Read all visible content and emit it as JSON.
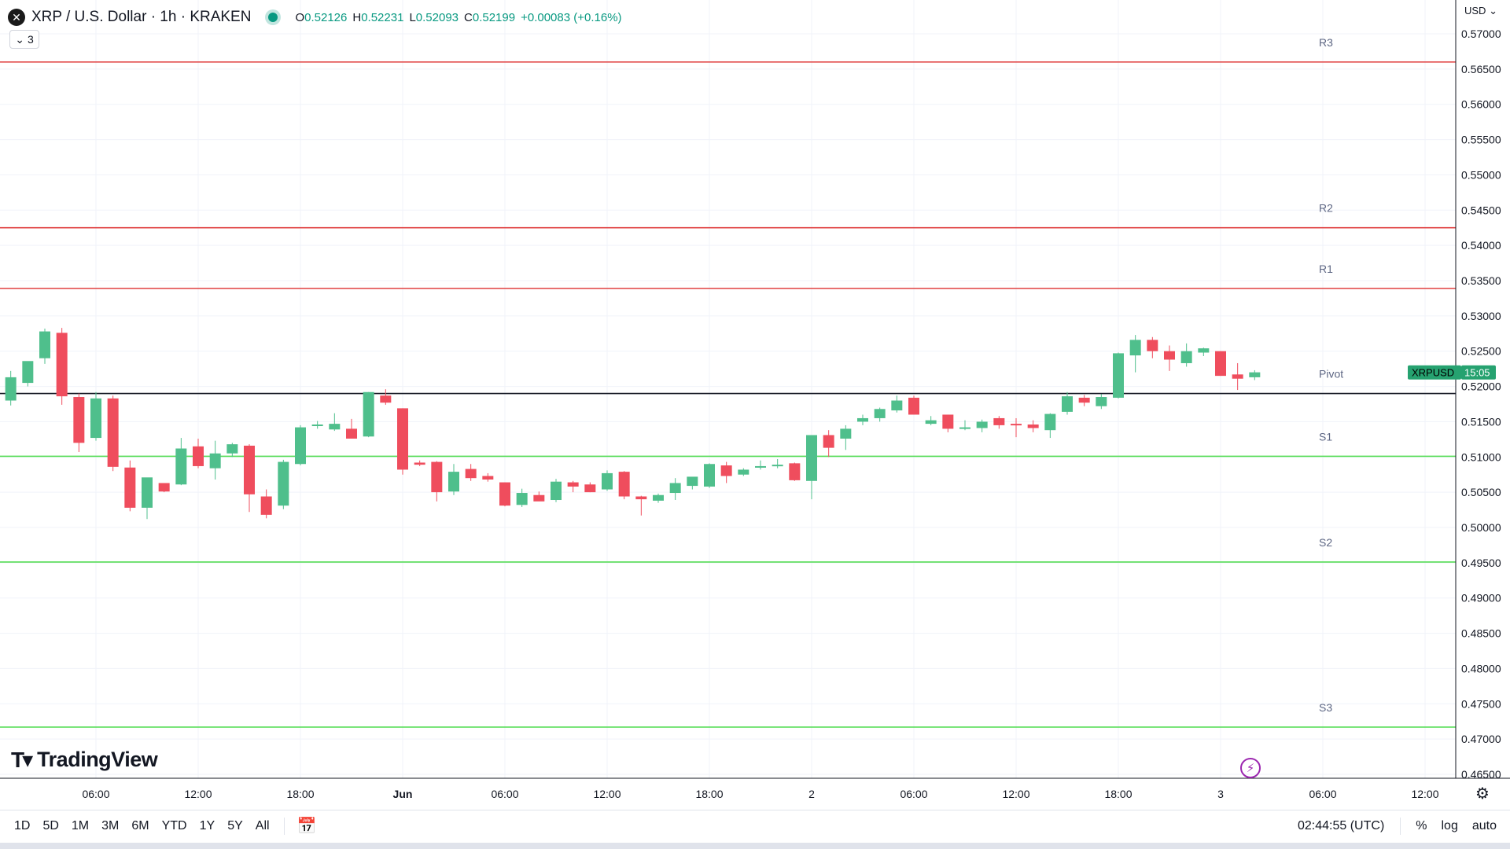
{
  "header": {
    "symbol_icon": "xrp-logo-icon",
    "title": "XRP / U.S. Dollar · 1h · KRAKEN",
    "ohlc": {
      "o_label": "O",
      "o": "0.52126",
      "h_label": "H",
      "h": "0.52231",
      "l_label": "L",
      "l": "0.52093",
      "c_label": "C",
      "c": "0.52199",
      "change": "+0.00083 (+0.16%)"
    },
    "indicators_count": "3",
    "currency": "USD"
  },
  "branding": {
    "logo_text": "TradingView"
  },
  "bottom_bar": {
    "ranges": [
      "1D",
      "5D",
      "1M",
      "3M",
      "6M",
      "YTD",
      "1Y",
      "5Y",
      "All"
    ],
    "clock": "02:44:55 (UTC)",
    "percent_label": "%",
    "log_label": "log",
    "auto_label": "auto"
  },
  "colors": {
    "up": "#4fbf8c",
    "down": "#ef4d5d",
    "resistance": "#e04141",
    "support": "#55dd55",
    "pivot": "#131722",
    "tag": "#26a270"
  },
  "chart_data": {
    "type": "candlestick",
    "yaxis": {
      "min": 0.465,
      "max": 0.57,
      "ticks": [
        "0.57000",
        "0.56500",
        "0.56000",
        "0.55500",
        "0.55000",
        "0.54500",
        "0.54000",
        "0.53500",
        "0.53000",
        "0.52500",
        "0.52000",
        "0.51500",
        "0.51000",
        "0.50500",
        "0.50000",
        "0.49500",
        "0.49000",
        "0.48500",
        "0.48000",
        "0.47500",
        "0.47000",
        "0.46500"
      ]
    },
    "xaxis": {
      "ticks": [
        {
          "label": "06:00",
          "i": 5
        },
        {
          "label": "12:00",
          "i": 11
        },
        {
          "label": "18:00",
          "i": 17
        },
        {
          "label": "Jun",
          "i": 23
        },
        {
          "label": "06:00",
          "i": 29
        },
        {
          "label": "12:00",
          "i": 35
        },
        {
          "label": "18:00",
          "i": 41
        },
        {
          "label": "2",
          "i": 47
        },
        {
          "label": "06:00",
          "i": 53
        },
        {
          "label": "12:00",
          "i": 59
        },
        {
          "label": "18:00",
          "i": 65
        },
        {
          "label": "3",
          "i": 71
        },
        {
          "label": "06:00",
          "i": 77
        },
        {
          "label": "12:00",
          "i": 83
        }
      ]
    },
    "levels": [
      {
        "name": "R3",
        "value": 0.566,
        "kind": "resistance"
      },
      {
        "name": "R2",
        "value": 0.5425,
        "kind": "resistance"
      },
      {
        "name": "R1",
        "value": 0.5339,
        "kind": "resistance"
      },
      {
        "name": "Pivot",
        "value": 0.519,
        "kind": "pivot"
      },
      {
        "name": "S1",
        "value": 0.5101,
        "kind": "support"
      },
      {
        "name": "S2",
        "value": 0.4951,
        "kind": "support"
      },
      {
        "name": "S3",
        "value": 0.4717,
        "kind": "support"
      }
    ],
    "price_tag": {
      "symbol": "XRPUSD",
      "countdown": "15:05",
      "value": 0.52199
    },
    "candles": [
      {
        "o": 0.518,
        "h": 0.5222,
        "l": 0.5173,
        "c": 0.5213
      },
      {
        "o": 0.5205,
        "h": 0.5231,
        "l": 0.52,
        "c": 0.5236
      },
      {
        "o": 0.524,
        "h": 0.5282,
        "l": 0.5232,
        "c": 0.5278
      },
      {
        "o": 0.5276,
        "h": 0.5283,
        "l": 0.5174,
        "c": 0.5186
      },
      {
        "o": 0.5185,
        "h": 0.519,
        "l": 0.5107,
        "c": 0.512
      },
      {
        "o": 0.5127,
        "h": 0.5192,
        "l": 0.5123,
        "c": 0.5183
      },
      {
        "o": 0.5183,
        "h": 0.5187,
        "l": 0.508,
        "c": 0.5086
      },
      {
        "o": 0.5085,
        "h": 0.5095,
        "l": 0.5023,
        "c": 0.5028
      },
      {
        "o": 0.5028,
        "h": 0.507,
        "l": 0.5012,
        "c": 0.5071
      },
      {
        "o": 0.5063,
        "h": 0.5063,
        "l": 0.505,
        "c": 0.5051
      },
      {
        "o": 0.5061,
        "h": 0.5127,
        "l": 0.506,
        "c": 0.5112
      },
      {
        "o": 0.5115,
        "h": 0.5126,
        "l": 0.5084,
        "c": 0.5087
      },
      {
        "o": 0.5084,
        "h": 0.5123,
        "l": 0.5068,
        "c": 0.5105
      },
      {
        "o": 0.5105,
        "h": 0.512,
        "l": 0.51,
        "c": 0.5118
      },
      {
        "o": 0.5116,
        "h": 0.5118,
        "l": 0.5022,
        "c": 0.5047
      },
      {
        "o": 0.5044,
        "h": 0.5054,
        "l": 0.5013,
        "c": 0.5018
      },
      {
        "o": 0.5031,
        "h": 0.5096,
        "l": 0.5026,
        "c": 0.5093
      },
      {
        "o": 0.509,
        "h": 0.5145,
        "l": 0.5088,
        "c": 0.5142
      },
      {
        "o": 0.5144,
        "h": 0.5151,
        "l": 0.514,
        "c": 0.5146
      },
      {
        "o": 0.5139,
        "h": 0.5162,
        "l": 0.5137,
        "c": 0.5147
      },
      {
        "o": 0.514,
        "h": 0.5154,
        "l": 0.513,
        "c": 0.5126
      },
      {
        "o": 0.5129,
        "h": 0.5192,
        "l": 0.5128,
        "c": 0.5192
      },
      {
        "o": 0.5187,
        "h": 0.5196,
        "l": 0.5174,
        "c": 0.5177
      },
      {
        "o": 0.5169,
        "h": 0.5169,
        "l": 0.5075,
        "c": 0.5082
      },
      {
        "o": 0.5092,
        "h": 0.5095,
        "l": 0.5087,
        "c": 0.5089
      },
      {
        "o": 0.5093,
        "h": 0.5094,
        "l": 0.5037,
        "c": 0.505
      },
      {
        "o": 0.5051,
        "h": 0.509,
        "l": 0.5046,
        "c": 0.5079
      },
      {
        "o": 0.5083,
        "h": 0.509,
        "l": 0.5066,
        "c": 0.507
      },
      {
        "o": 0.5073,
        "h": 0.5077,
        "l": 0.5065,
        "c": 0.5068
      },
      {
        "o": 0.5064,
        "h": 0.5064,
        "l": 0.503,
        "c": 0.5031
      },
      {
        "o": 0.5032,
        "h": 0.5055,
        "l": 0.5029,
        "c": 0.5049
      },
      {
        "o": 0.5046,
        "h": 0.5051,
        "l": 0.5038,
        "c": 0.5037
      },
      {
        "o": 0.5039,
        "h": 0.5069,
        "l": 0.5036,
        "c": 0.5065
      },
      {
        "o": 0.5064,
        "h": 0.5066,
        "l": 0.505,
        "c": 0.5058
      },
      {
        "o": 0.5061,
        "h": 0.5064,
        "l": 0.505,
        "c": 0.505
      },
      {
        "o": 0.5054,
        "h": 0.5081,
        "l": 0.5052,
        "c": 0.5077
      },
      {
        "o": 0.5079,
        "h": 0.508,
        "l": 0.504,
        "c": 0.5044
      },
      {
        "o": 0.5044,
        "h": 0.5045,
        "l": 0.5017,
        "c": 0.504
      },
      {
        "o": 0.5038,
        "h": 0.5048,
        "l": 0.5035,
        "c": 0.5046
      },
      {
        "o": 0.5049,
        "h": 0.507,
        "l": 0.5039,
        "c": 0.5063
      },
      {
        "o": 0.5059,
        "h": 0.5071,
        "l": 0.5054,
        "c": 0.5072
      },
      {
        "o": 0.5058,
        "h": 0.5091,
        "l": 0.5056,
        "c": 0.509
      },
      {
        "o": 0.5088,
        "h": 0.5093,
        "l": 0.5063,
        "c": 0.5073
      },
      {
        "o": 0.5075,
        "h": 0.5084,
        "l": 0.5073,
        "c": 0.5082
      },
      {
        "o": 0.5085,
        "h": 0.5095,
        "l": 0.5082,
        "c": 0.5087
      },
      {
        "o": 0.5088,
        "h": 0.5097,
        "l": 0.5084,
        "c": 0.5089
      },
      {
        "o": 0.5091,
        "h": 0.5092,
        "l": 0.5066,
        "c": 0.5067
      },
      {
        "o": 0.5066,
        "h": 0.5131,
        "l": 0.504,
        "c": 0.5131
      },
      {
        "o": 0.5131,
        "h": 0.5138,
        "l": 0.51,
        "c": 0.5113
      },
      {
        "o": 0.5126,
        "h": 0.5145,
        "l": 0.511,
        "c": 0.514
      },
      {
        "o": 0.515,
        "h": 0.516,
        "l": 0.5145,
        "c": 0.5155
      },
      {
        "o": 0.5155,
        "h": 0.517,
        "l": 0.515,
        "c": 0.5168
      },
      {
        "o": 0.5166,
        "h": 0.5187,
        "l": 0.5163,
        "c": 0.518
      },
      {
        "o": 0.5184,
        "h": 0.5187,
        "l": 0.516,
        "c": 0.516
      },
      {
        "o": 0.5147,
        "h": 0.5158,
        "l": 0.5145,
        "c": 0.5152
      },
      {
        "o": 0.516,
        "h": 0.516,
        "l": 0.5135,
        "c": 0.514
      },
      {
        "o": 0.5142,
        "h": 0.5152,
        "l": 0.5138,
        "c": 0.5142
      },
      {
        "o": 0.5141,
        "h": 0.5153,
        "l": 0.5135,
        "c": 0.515
      },
      {
        "o": 0.5155,
        "h": 0.5158,
        "l": 0.514,
        "c": 0.5145
      },
      {
        "o": 0.5147,
        "h": 0.5155,
        "l": 0.5128,
        "c": 0.5145
      },
      {
        "o": 0.5146,
        "h": 0.5152,
        "l": 0.5135,
        "c": 0.5141
      },
      {
        "o": 0.5138,
        "h": 0.5162,
        "l": 0.5127,
        "c": 0.5161
      },
      {
        "o": 0.5164,
        "h": 0.5192,
        "l": 0.516,
        "c": 0.5186
      },
      {
        "o": 0.5184,
        "h": 0.5188,
        "l": 0.5172,
        "c": 0.5177
      },
      {
        "o": 0.5172,
        "h": 0.5189,
        "l": 0.5168,
        "c": 0.5185
      },
      {
        "o": 0.5184,
        "h": 0.5248,
        "l": 0.5183,
        "c": 0.5247
      },
      {
        "o": 0.5244,
        "h": 0.5273,
        "l": 0.522,
        "c": 0.5266
      },
      {
        "o": 0.5266,
        "h": 0.527,
        "l": 0.524,
        "c": 0.525
      },
      {
        "o": 0.525,
        "h": 0.5258,
        "l": 0.5222,
        "c": 0.5238
      },
      {
        "o": 0.5233,
        "h": 0.5261,
        "l": 0.5228,
        "c": 0.525
      },
      {
        "o": 0.5248,
        "h": 0.5255,
        "l": 0.5243,
        "c": 0.5254
      },
      {
        "o": 0.525,
        "h": 0.525,
        "l": 0.5215,
        "c": 0.5215
      },
      {
        "o": 0.5217,
        "h": 0.5233,
        "l": 0.5195,
        "c": 0.5211
      },
      {
        "o": 0.5213,
        "h": 0.5223,
        "l": 0.5209,
        "c": 0.522
      }
    ]
  }
}
